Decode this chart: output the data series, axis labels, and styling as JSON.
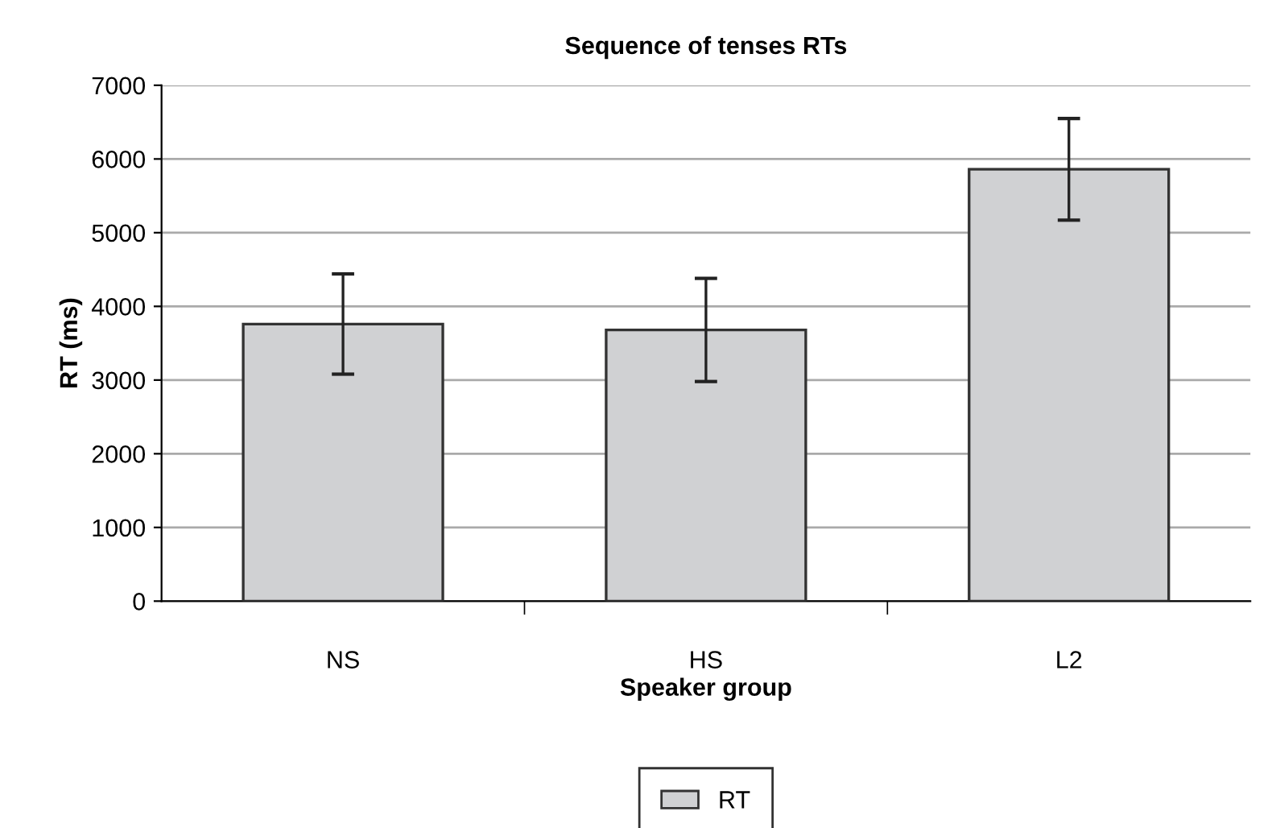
{
  "chart_data": {
    "type": "bar",
    "title": "Sequence of tenses RTs",
    "xlabel": "Speaker group",
    "ylabel": "RT (ms)",
    "categories": [
      "NS",
      "HS",
      "L2"
    ],
    "series": [
      {
        "name": "RT",
        "color": "#d0d1d3",
        "values": [
          3760,
          3680,
          5860
        ],
        "errors": [
          680,
          700,
          690
        ]
      }
    ],
    "ylim": [
      0,
      7000
    ],
    "yticks": [
      0,
      1000,
      2000,
      3000,
      4000,
      5000,
      6000,
      7000
    ],
    "grid": "y",
    "legend": "bottom"
  }
}
